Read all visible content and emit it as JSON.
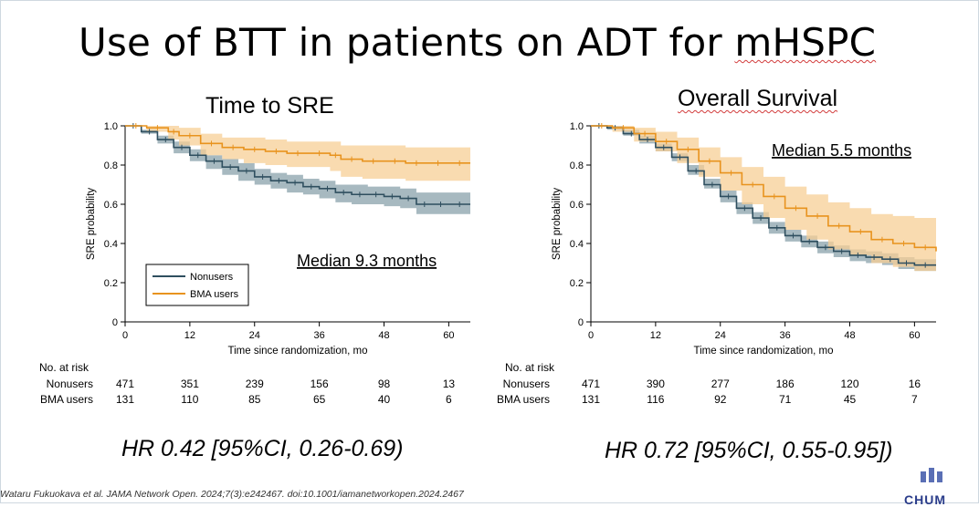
{
  "title": {
    "main": "Use of BTT in patients on ADT for ",
    "underlined": "mHSPC"
  },
  "citation": "Wataru Fukuokava et al. JAMA Network Open. 2024;7(3):e242467. doi:10.1001/iamanetworkopen.2024.2467",
  "logo_text": "CHUM",
  "colors": {
    "nonusers": "#2f4f5f",
    "bma": "#e8931e",
    "nonusers_band": "#8aa1ab",
    "bma_band": "#f7cf96"
  },
  "chart_data": [
    {
      "type": "line",
      "panel_title": "Time to SRE",
      "ylabel": "SRE probability",
      "xlabel": "Time since randomization, mo",
      "xlim": [
        0,
        64
      ],
      "ylim": [
        0,
        1.0
      ],
      "xticks": [
        0,
        12,
        24,
        36,
        48,
        60
      ],
      "yticks": [
        "0",
        "0.2",
        "0.4",
        "0.6",
        "0.8",
        "1.0"
      ],
      "legend": {
        "placement": "bottom-left",
        "entries": [
          "Nonusers",
          "BMA users"
        ]
      },
      "annotation": "Median 9.3 months",
      "hr": "HR 0.42 [95%CI, 0.26-0.69)",
      "series": [
        {
          "name": "Nonusers",
          "color": "#2f4f5f",
          "band": "#8aa1ab",
          "x": [
            0,
            3,
            6,
            9,
            12,
            15,
            18,
            21,
            24,
            27,
            30,
            33,
            36,
            39,
            42,
            45,
            48,
            51,
            54,
            57,
            60,
            64
          ],
          "y": [
            1.0,
            0.97,
            0.93,
            0.89,
            0.85,
            0.82,
            0.79,
            0.77,
            0.74,
            0.72,
            0.71,
            0.69,
            0.68,
            0.66,
            0.65,
            0.65,
            0.64,
            0.63,
            0.6,
            0.6,
            0.6,
            0.6
          ],
          "lower": [
            1.0,
            0.96,
            0.91,
            0.86,
            0.82,
            0.78,
            0.75,
            0.72,
            0.7,
            0.68,
            0.66,
            0.65,
            0.63,
            0.61,
            0.6,
            0.6,
            0.59,
            0.58,
            0.55,
            0.55,
            0.55,
            0.55
          ],
          "upper": [
            1.0,
            0.98,
            0.95,
            0.92,
            0.88,
            0.85,
            0.83,
            0.81,
            0.78,
            0.76,
            0.75,
            0.73,
            0.72,
            0.7,
            0.7,
            0.69,
            0.69,
            0.68,
            0.66,
            0.66,
            0.66,
            0.66
          ]
        },
        {
          "name": "BMA users",
          "color": "#e8931e",
          "band": "#f7cf96",
          "x": [
            0,
            4,
            8,
            10,
            14,
            18,
            22,
            26,
            30,
            34,
            38,
            40,
            44,
            48,
            52,
            56,
            60,
            64
          ],
          "y": [
            1.0,
            0.99,
            0.97,
            0.95,
            0.91,
            0.89,
            0.88,
            0.87,
            0.86,
            0.86,
            0.85,
            0.83,
            0.82,
            0.82,
            0.81,
            0.81,
            0.81,
            0.81
          ],
          "lower": [
            1.0,
            0.97,
            0.93,
            0.9,
            0.85,
            0.83,
            0.81,
            0.8,
            0.79,
            0.79,
            0.77,
            0.74,
            0.73,
            0.73,
            0.72,
            0.72,
            0.72,
            0.72
          ],
          "upper": [
            1.0,
            1.0,
            1.0,
            0.99,
            0.96,
            0.94,
            0.94,
            0.93,
            0.92,
            0.92,
            0.92,
            0.9,
            0.9,
            0.9,
            0.89,
            0.89,
            0.89,
            0.89
          ]
        }
      ],
      "risk_table": {
        "header": "No. at risk",
        "rows": [
          {
            "label": "Nonusers",
            "values": [
              "471",
              "351",
              "239",
              "156",
              "98",
              "13"
            ]
          },
          {
            "label": "BMA users",
            "values": [
              "131",
              "110",
              "85",
              "65",
              "40",
              "6"
            ]
          }
        ]
      }
    },
    {
      "type": "line",
      "panel_title": "Overall Survival",
      "ylabel": "SRE probability",
      "xlabel": "Time since randomization, mo",
      "xlim": [
        0,
        64
      ],
      "ylim": [
        0,
        1.0
      ],
      "xticks": [
        0,
        12,
        24,
        36,
        48,
        60
      ],
      "yticks": [
        "0",
        "0.2",
        "0.4",
        "0.6",
        "0.8",
        "1.0"
      ],
      "annotation": "Median 5.5 months",
      "hr": "HR 0.72 [95%CI, 0.55-0.95])",
      "series": [
        {
          "name": "Nonusers",
          "color": "#2f4f5f",
          "band": "#8aa1ab",
          "x": [
            0,
            3,
            6,
            9,
            12,
            15,
            18,
            21,
            24,
            27,
            30,
            33,
            36,
            39,
            42,
            45,
            48,
            51,
            54,
            57,
            60,
            64
          ],
          "y": [
            1.0,
            0.99,
            0.96,
            0.93,
            0.89,
            0.84,
            0.77,
            0.7,
            0.64,
            0.58,
            0.53,
            0.48,
            0.44,
            0.41,
            0.38,
            0.36,
            0.34,
            0.33,
            0.32,
            0.3,
            0.29,
            0.29
          ],
          "lower": [
            1.0,
            0.98,
            0.95,
            0.91,
            0.87,
            0.82,
            0.75,
            0.68,
            0.61,
            0.55,
            0.5,
            0.45,
            0.41,
            0.38,
            0.35,
            0.33,
            0.31,
            0.3,
            0.29,
            0.27,
            0.26,
            0.26
          ],
          "upper": [
            1.0,
            1.0,
            0.98,
            0.95,
            0.91,
            0.86,
            0.8,
            0.73,
            0.67,
            0.61,
            0.56,
            0.51,
            0.47,
            0.44,
            0.41,
            0.39,
            0.37,
            0.36,
            0.35,
            0.33,
            0.32,
            0.32
          ]
        },
        {
          "name": "BMA users",
          "color": "#e8931e",
          "band": "#f7cf96",
          "x": [
            0,
            4,
            8,
            12,
            16,
            20,
            24,
            28,
            32,
            36,
            40,
            44,
            48,
            52,
            56,
            60,
            64
          ],
          "y": [
            1.0,
            0.99,
            0.96,
            0.92,
            0.88,
            0.82,
            0.76,
            0.7,
            0.64,
            0.58,
            0.54,
            0.49,
            0.46,
            0.42,
            0.4,
            0.38,
            0.36
          ],
          "lower": [
            1.0,
            0.97,
            0.92,
            0.87,
            0.81,
            0.74,
            0.67,
            0.6,
            0.53,
            0.47,
            0.42,
            0.37,
            0.34,
            0.3,
            0.28,
            0.26,
            0.24
          ],
          "upper": [
            1.0,
            1.0,
            0.99,
            0.97,
            0.94,
            0.89,
            0.84,
            0.79,
            0.74,
            0.69,
            0.65,
            0.61,
            0.58,
            0.55,
            0.54,
            0.53,
            0.53
          ]
        }
      ],
      "risk_table": {
        "header": "No. at risk",
        "rows": [
          {
            "label": "Nonusers",
            "values": [
              "471",
              "390",
              "277",
              "186",
              "120",
              "16"
            ]
          },
          {
            "label": "BMA users",
            "values": [
              "131",
              "116",
              "92",
              "71",
              "45",
              "7"
            ]
          }
        ]
      }
    }
  ]
}
